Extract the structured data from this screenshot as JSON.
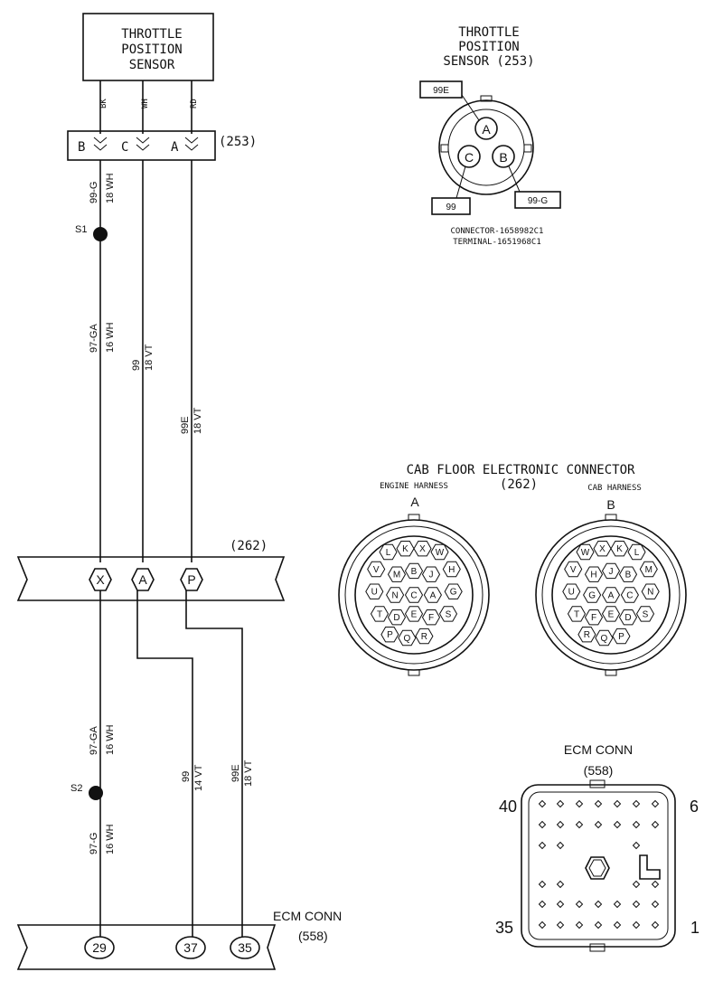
{
  "tps_box": {
    "line1": "THROTTLE",
    "line2": "POSITION",
    "line3": "SENSOR"
  },
  "wire_colors": {
    "bk": "BK",
    "wh": "WH",
    "rd": "RD"
  },
  "conn253": {
    "ref": "(253)",
    "pin_b": "B",
    "pin_c": "C",
    "pin_a": "A"
  },
  "wires": {
    "w1_code": "99-G",
    "w1_gauge": "18 WH",
    "w2_code": "97-GA",
    "w2_gauge": "16 WH",
    "w3_code": "99",
    "w3_gauge": "18 VT",
    "w4_code": "99E",
    "w4_gauge": "18 VT",
    "w5_code": "97-GA",
    "w5_gauge": "16 WH",
    "w6_code": "97-G",
    "w6_gauge": "16 WH",
    "w7_code": "99",
    "w7_gauge": "14 VT",
    "w8_code": "99E",
    "w8_gauge": "18 VT"
  },
  "splices": {
    "s1": "S1",
    "s2": "S2"
  },
  "conn262": {
    "ref": "(262)",
    "pin_x": "X",
    "pin_a": "A",
    "pin_p": "P"
  },
  "ecm_left": {
    "title": "ECM CONN",
    "ref": "(558)",
    "pin_29": "29",
    "pin_37": "37",
    "pin_35": "35"
  },
  "tps_view": {
    "title1": "THROTTLE",
    "title2": "POSITION",
    "title3": "SENSOR (253)",
    "tag_99e": "99E",
    "tag_99": "99",
    "tag_99g": "99-G",
    "pin_a": "A",
    "pin_b": "B",
    "pin_c": "C",
    "connector": "CONNECTOR-1658982C1",
    "terminal": "TERMINAL-1651968C1"
  },
  "cab_floor": {
    "title": "CAB FLOOR ELECTRONIC CONNECTOR",
    "engine_harness": "ENGINE HARNESS",
    "ref": "(262)",
    "cab_harness": "CAB HARNESS",
    "side_a": "A",
    "side_b": "B",
    "pins_a": [
      "L",
      "K",
      "X",
      "W",
      "V",
      "M",
      "B",
      "J",
      "H",
      "U",
      "N",
      "C",
      "A",
      "G",
      "T",
      "D",
      "E",
      "F",
      "S",
      "P",
      "Q",
      "R"
    ],
    "pins_b": [
      "W",
      "X",
      "K",
      "L",
      "V",
      "H",
      "J",
      "B",
      "M",
      "U",
      "G",
      "A",
      "C",
      "N",
      "T",
      "F",
      "E",
      "D",
      "S",
      "R",
      "Q",
      "P"
    ]
  },
  "ecm_conn": {
    "title": "ECM CONN",
    "ref": "(558)",
    "pin_40": "40",
    "pin_6": "6",
    "pin_35": "35",
    "pin_1": "1"
  }
}
